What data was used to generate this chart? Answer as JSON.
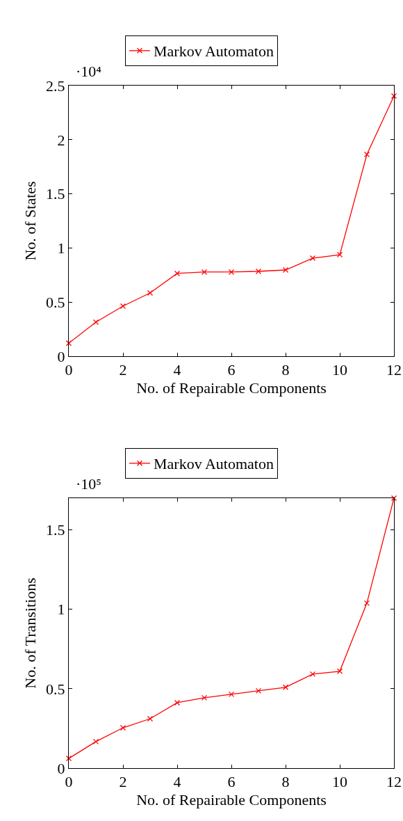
{
  "chart_data": [
    {
      "type": "line",
      "xlabel": "No. of Repairable Components",
      "ylabel": "No. of States",
      "annotations": [
        "·10⁴"
      ],
      "x": [
        0,
        1,
        2,
        3,
        4,
        5,
        6,
        7,
        8,
        9,
        10,
        11,
        12
      ],
      "series": [
        {
          "name": "Markov Automaton",
          "color": "#ff0000",
          "values": [
            0.12,
            0.315,
            0.463,
            0.585,
            0.765,
            0.778,
            0.778,
            0.784,
            0.797,
            0.906,
            0.938,
            1.864,
            2.404
          ]
        }
      ],
      "xlim": [
        0,
        12
      ],
      "ylim": [
        0,
        2.5
      ],
      "xticks": [
        0,
        2,
        4,
        6,
        8,
        10,
        12
      ],
      "yticks": [
        0,
        0.5,
        1,
        1.5,
        2,
        2.5
      ],
      "legend": "top",
      "marker": "cross"
    },
    {
      "type": "line",
      "xlabel": "No. of Repairable Components",
      "ylabel": "No. of Transitions",
      "annotations": [
        "·10⁵"
      ],
      "x": [
        0,
        1,
        2,
        3,
        4,
        5,
        6,
        7,
        8,
        9,
        10,
        11,
        12
      ],
      "series": [
        {
          "name": "Markov Automaton",
          "color": "#ff0000",
          "values": [
            0.061,
            0.167,
            0.254,
            0.311,
            0.412,
            0.443,
            0.465,
            0.487,
            0.509,
            0.592,
            0.61,
            1.039,
            1.7
          ]
        }
      ],
      "xlim": [
        0,
        12
      ],
      "ylim": [
        0,
        1.7
      ],
      "xticks": [
        0,
        2,
        4,
        6,
        8,
        10,
        12
      ],
      "yticks": [
        0,
        0.5,
        1,
        1.5
      ],
      "legend": "top",
      "marker": "cross"
    }
  ]
}
